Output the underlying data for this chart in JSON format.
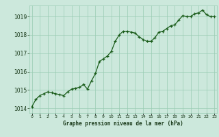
{
  "x": [
    0,
    0.5,
    1,
    1.5,
    2,
    2.5,
    3,
    3.5,
    4,
    4.5,
    5,
    5.5,
    6,
    6.5,
    7,
    7.5,
    8,
    8.5,
    9,
    9.5,
    10,
    10.5,
    11,
    11.5,
    12,
    12.5,
    13,
    13.5,
    14,
    14.5,
    15,
    15.5,
    16,
    16.5,
    17,
    17.5,
    18,
    18.5,
    19,
    19.5,
    20,
    20.5,
    21,
    21.5,
    22,
    22.5,
    23
  ],
  "y": [
    1014.1,
    1014.5,
    1014.7,
    1014.8,
    1014.9,
    1014.85,
    1014.8,
    1014.75,
    1014.7,
    1014.9,
    1015.05,
    1015.1,
    1015.15,
    1015.3,
    1015.05,
    1015.5,
    1015.9,
    1016.55,
    1016.7,
    1016.85,
    1017.1,
    1017.65,
    1018.0,
    1018.2,
    1018.2,
    1018.15,
    1018.1,
    1017.9,
    1017.75,
    1017.65,
    1017.65,
    1017.85,
    1018.15,
    1018.2,
    1018.35,
    1018.5,
    1018.55,
    1018.8,
    1019.05,
    1019.0,
    1019.0,
    1019.15,
    1019.2,
    1019.35,
    1019.1,
    1019.0,
    1019.0
  ],
  "line_color": "#1a5c1a",
  "marker_color": "#1a5c1a",
  "bg_color": "#cce8dc",
  "grid_color": "#99ccb3",
  "title": "Graphe pression niveau de la mer (hPa)",
  "xlabel_ticks": [
    0,
    1,
    2,
    3,
    4,
    5,
    6,
    7,
    8,
    9,
    10,
    11,
    12,
    13,
    14,
    15,
    16,
    17,
    18,
    19,
    20,
    21,
    22,
    23
  ],
  "ylim": [
    1013.75,
    1019.6
  ],
  "yticks": [
    1014,
    1015,
    1016,
    1017,
    1018,
    1019
  ],
  "xlim": [
    -0.3,
    23.3
  ]
}
